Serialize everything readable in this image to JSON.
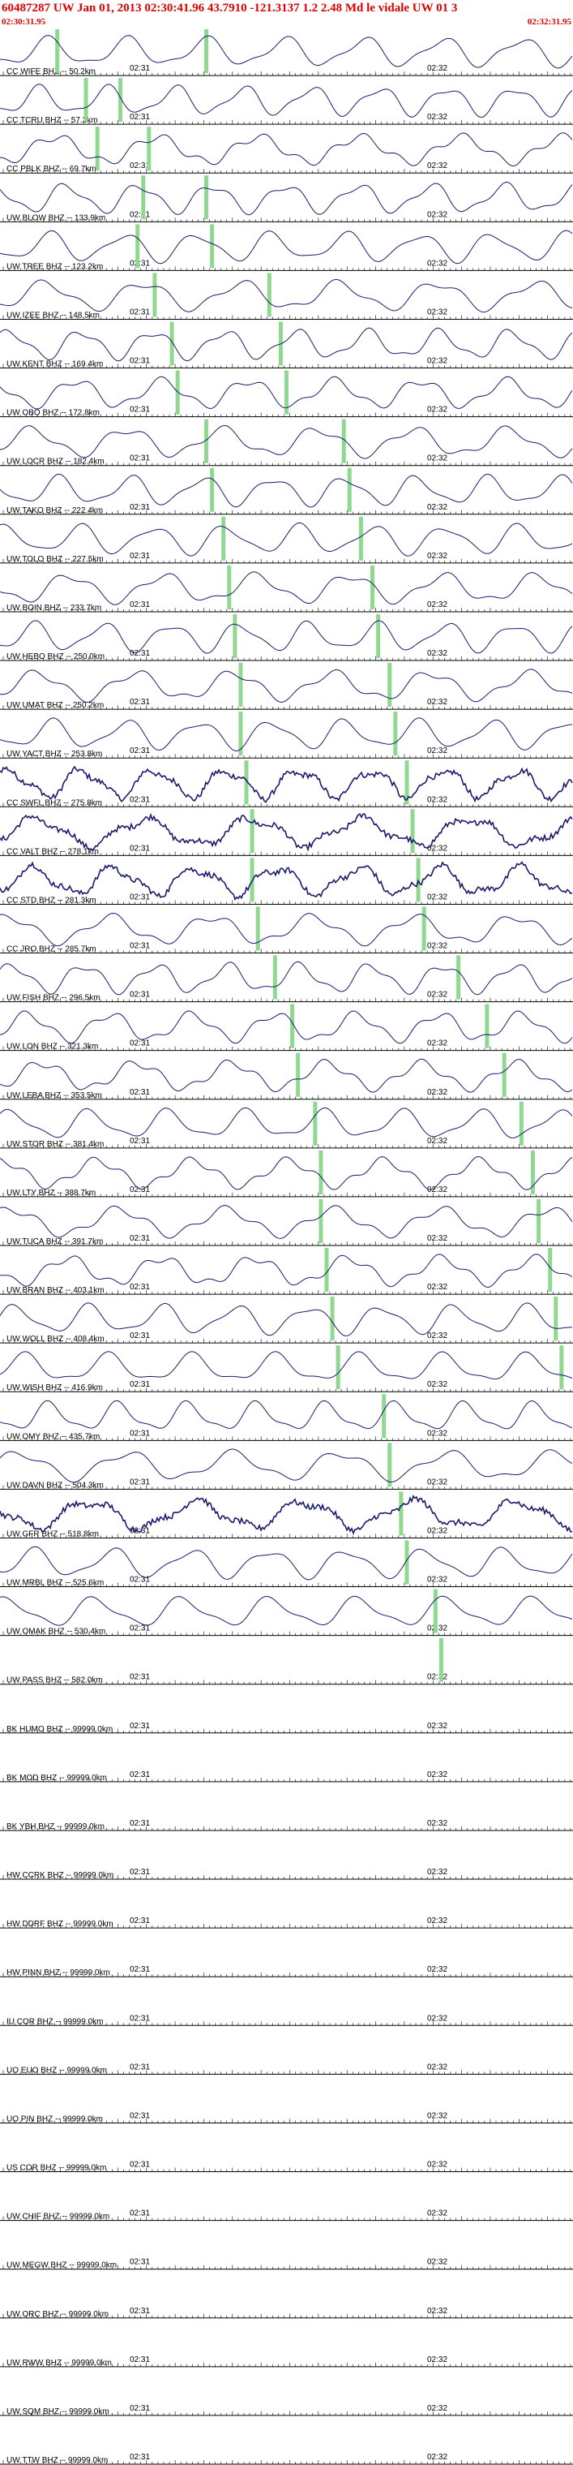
{
  "header": {
    "title": "60487287 UW Jan 01, 2013 02:30:41.96   43.7910  -121.3137   1.2  2.48  Md le vidale UW 01    3",
    "start_time": "02:30:31.95",
    "end_time": "02:32:31.95"
  },
  "colors": {
    "header_text": "#e00000",
    "trace": "#1a1a6e",
    "pick_marker": "#90d890",
    "axis": "#000000"
  },
  "chart_data": {
    "type": "line",
    "title": "",
    "xlabel": "",
    "ylabel": "",
    "x_tick_labels": [
      "02:31",
      "02:32"
    ],
    "stations": [
      {
        "label": "CC WIFE BHZ -- 50.2km",
        "picks": [
          0.1,
          0.36
        ]
      },
      {
        "label": "CC TCRU BHZ -- 57.3km",
        "picks": [
          0.15,
          0.21
        ]
      },
      {
        "label": "CC PBLK BHZ -- 69.7km",
        "picks": [
          0.17,
          0.26
        ]
      },
      {
        "label": "UW BLOW BHZ -- 133.9km",
        "picks": [
          0.25,
          0.36
        ]
      },
      {
        "label": "UW TREE BHZ -- 123.2km",
        "picks": [
          0.24,
          0.37
        ]
      },
      {
        "label": "UW IZEE BHZ -- 148.5km",
        "picks": [
          0.27,
          0.47
        ]
      },
      {
        "label": "UW KENT BHZ -- 169.4km",
        "picks": [
          0.3,
          0.49
        ]
      },
      {
        "label": "UW OBO BHZ -- 172.8km",
        "picks": [
          0.31,
          0.5
        ]
      },
      {
        "label": "UW LOCR BHZ -- 182.4km",
        "picks": [
          0.36,
          0.6
        ]
      },
      {
        "label": "UW TAKO BHZ -- 222.4km",
        "picks": [
          0.37,
          0.61
        ]
      },
      {
        "label": "UW TOLO BHZ -- 227.5km",
        "picks": [
          0.39,
          0.63
        ]
      },
      {
        "label": "UW BOIN BHZ -- 233.7km",
        "picks": [
          0.4,
          0.65
        ]
      },
      {
        "label": "UW HEBO BHZ -- 250.0km",
        "picks": [
          0.41,
          0.66
        ]
      },
      {
        "label": "UW UMAT BHZ -- 250.2km",
        "picks": [
          0.42,
          0.68
        ]
      },
      {
        "label": "UW YACT BHZ -- 253.8km",
        "picks": [
          0.42,
          0.69
        ]
      },
      {
        "label": "CC SWFL BHZ -- 275.8km",
        "picks": [
          0.43,
          0.71
        ]
      },
      {
        "label": "CC VALT BHZ -- 278.1km",
        "picks": [
          0.44,
          0.72
        ]
      },
      {
        "label": "CC STD BHZ -- 281.3km",
        "picks": [
          0.44,
          0.73
        ]
      },
      {
        "label": "CC JRO BHZ -- 285.7km",
        "picks": [
          0.45,
          0.74
        ]
      },
      {
        "label": "UW FISH BHZ -- 296.5km",
        "picks": [
          0.48,
          0.8
        ]
      },
      {
        "label": "UW LON BHZ -- 321.3km",
        "picks": [
          0.51,
          0.85
        ]
      },
      {
        "label": "UW LEBA BHZ -- 353.5km",
        "picks": [
          0.52,
          0.88
        ]
      },
      {
        "label": "UW STOR BHZ -- 381.4km",
        "picks": [
          0.55,
          0.91
        ]
      },
      {
        "label": "UW LTY BHZ -- 388.7km",
        "picks": [
          0.56,
          0.93
        ]
      },
      {
        "label": "UW TUCA BHZ -- 391.7km",
        "picks": [
          0.56,
          0.94
        ]
      },
      {
        "label": "UW BRAN BHZ -- 403.1km",
        "picks": [
          0.57,
          0.96
        ]
      },
      {
        "label": "UW WOLL BHZ -- 408.4km",
        "picks": [
          0.58,
          0.97
        ]
      },
      {
        "label": "UW WISH BHZ -- 416.9km",
        "picks": [
          0.59,
          0.98
        ]
      },
      {
        "label": "UW OMY BHZ -- 435.7km",
        "picks": [
          0.67
        ]
      },
      {
        "label": "UW DAVN BHZ -- 504.3km",
        "picks": [
          0.68
        ]
      },
      {
        "label": "UW GFR BHZ -- 518.8km",
        "picks": [
          0.7
        ]
      },
      {
        "label": "UW MRBL BHZ -- 525.6km",
        "picks": [
          0.71
        ]
      },
      {
        "label": "UW OMAK BHZ -- 530.4km",
        "picks": [
          0.76
        ]
      },
      {
        "label": "UW PASS BHZ -- 582.0km",
        "picks": [
          0.77
        ]
      },
      {
        "label": "BK HUMO BHZ -- 99999.0km",
        "picks": []
      },
      {
        "label": "BK MOD BHZ -- 99999.0km",
        "picks": []
      },
      {
        "label": "BK YBH BHZ -- 99999.0km",
        "picks": []
      },
      {
        "label": "HW CCRK BHZ -- 99999.0km",
        "picks": []
      },
      {
        "label": "HW DDRF BHZ -- 99999.0km",
        "picks": []
      },
      {
        "label": "HW PINN BHZ -- 99999.0km",
        "picks": []
      },
      {
        "label": "IU COR BHZ -- 99999.0km",
        "picks": []
      },
      {
        "label": "UO EUO BHZ -- 99999.0km",
        "picks": []
      },
      {
        "label": "UO PIN BHZ -- 99999.0km",
        "picks": []
      },
      {
        "label": "US COR BHZ -- 99999.0km",
        "picks": []
      },
      {
        "label": "UW CHIF BHZ -- 99999.0km",
        "picks": []
      },
      {
        "label": "UW MEGW BHZ -- 99999.0km",
        "picks": []
      },
      {
        "label": "UW ORC BHZ -- 99999.0km",
        "picks": []
      },
      {
        "label": "UW RWW BHZ -- 99999.0km",
        "picks": []
      },
      {
        "label": "UW SQM BHZ -- 99999.0km",
        "picks": []
      },
      {
        "label": "UW TTW BHZ -- 99999.0km",
        "picks": []
      }
    ],
    "waveform_station_count": 33
  }
}
